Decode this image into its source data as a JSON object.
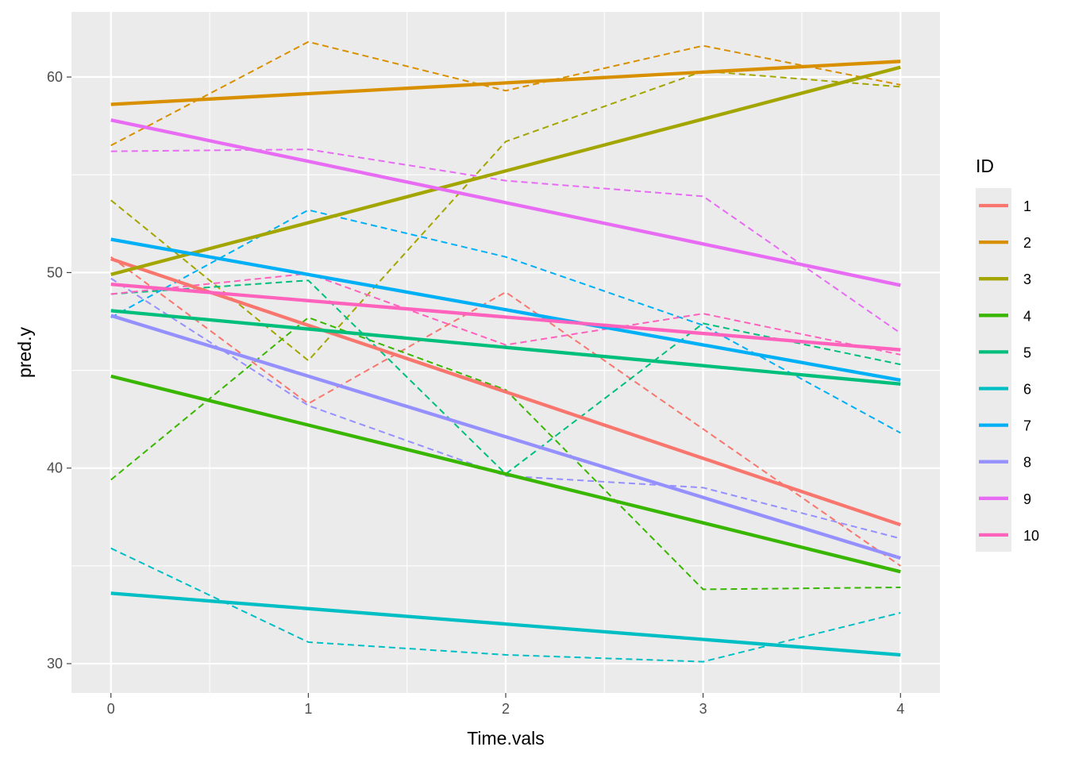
{
  "chart_data": {
    "type": "line",
    "title": "",
    "xlabel": "Time.vals",
    "ylabel": "pred.y",
    "xlim": [
      -0.2,
      4.2
    ],
    "ylim": [
      28.5,
      63.33
    ],
    "x": [
      0,
      1,
      2,
      3,
      4
    ],
    "xticks": [
      0,
      1,
      2,
      3,
      4
    ],
    "yticks": [
      30,
      40,
      50,
      60
    ],
    "grid": true,
    "legend": {
      "title": "ID",
      "placement": "right"
    },
    "series": [
      {
        "name": "1",
        "color": "#F8766D",
        "fitted": [
          50.7,
          37.1
        ],
        "observed": [
          50.8,
          43.3,
          49.0,
          42.0,
          35.0
        ]
      },
      {
        "name": "2",
        "color": "#D89000",
        "fitted": [
          58.6,
          60.8
        ],
        "observed": [
          56.5,
          61.8,
          59.3,
          61.6,
          59.6
        ]
      },
      {
        "name": "3",
        "color": "#A3A500",
        "fitted": [
          49.9,
          60.5
        ],
        "observed": [
          53.7,
          45.5,
          56.7,
          60.3,
          59.5
        ]
      },
      {
        "name": "4",
        "color": "#39B600",
        "fitted": [
          44.7,
          34.7
        ],
        "observed": [
          39.4,
          47.7,
          44.0,
          33.8,
          33.9
        ]
      },
      {
        "name": "5",
        "color": "#00BF7D",
        "fitted": [
          48.05,
          44.3
        ],
        "observed": [
          48.9,
          49.6,
          39.7,
          47.4,
          45.3
        ]
      },
      {
        "name": "6",
        "color": "#00BFC4",
        "fitted": [
          33.6,
          30.45
        ],
        "observed": [
          35.9,
          31.1,
          30.45,
          30.1,
          32.6
        ]
      },
      {
        "name": "7",
        "color": "#00B0F6",
        "fitted": [
          51.7,
          44.5
        ],
        "observed": [
          47.7,
          53.2,
          50.8,
          47.3,
          41.8
        ]
      },
      {
        "name": "8",
        "color": "#9590FF",
        "fitted": [
          47.8,
          35.4
        ],
        "observed": [
          49.7,
          43.2,
          39.6,
          39.0,
          36.4
        ]
      },
      {
        "name": "9",
        "color": "#E76BF3",
        "fitted": [
          57.8,
          49.35
        ],
        "observed": [
          56.2,
          56.3,
          54.7,
          53.9,
          46.9
        ]
      },
      {
        "name": "10",
        "color": "#FF62BC",
        "fitted": [
          49.4,
          46.05
        ],
        "observed": [
          48.9,
          49.95,
          46.3,
          47.9,
          45.8
        ]
      }
    ]
  }
}
